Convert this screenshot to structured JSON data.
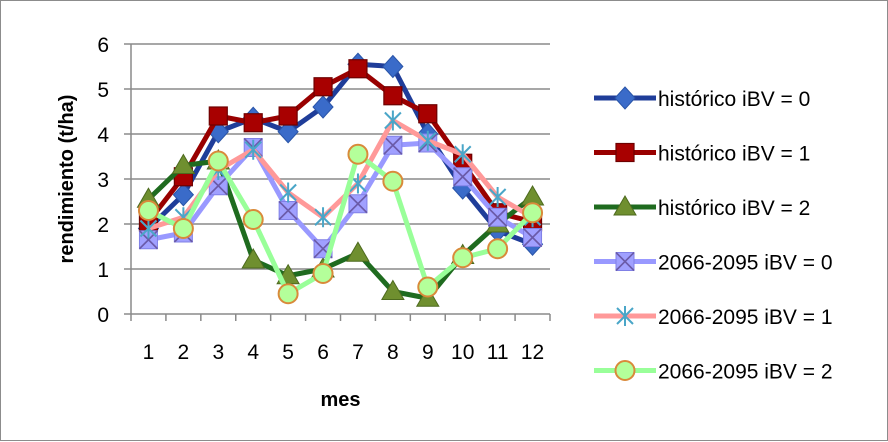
{
  "chart_data": {
    "type": "line",
    "title": "",
    "xlabel": "mes",
    "ylabel": "rendimiento (t/ha)",
    "ylim": [
      0,
      6
    ],
    "y_ticks": [
      0,
      1,
      2,
      3,
      4,
      5,
      6
    ],
    "categories": [
      "1",
      "2",
      "3",
      "4",
      "5",
      "6",
      "7",
      "8",
      "9",
      "10",
      "11",
      "12"
    ],
    "grid": "horizontal",
    "legend_position": "right",
    "series": [
      {
        "name": "histórico iBV = 0",
        "color": "#1f3d99",
        "marker": "diamond",
        "values": [
          1.9,
          2.65,
          4.05,
          4.35,
          4.05,
          4.6,
          5.55,
          5.5,
          4.0,
          2.8,
          1.85,
          1.55
        ]
      },
      {
        "name": "histórico iBV = 1",
        "color": "#990000",
        "marker": "square",
        "values": [
          2.05,
          3.05,
          4.4,
          4.25,
          4.4,
          5.05,
          5.45,
          4.85,
          4.45,
          3.35,
          2.25,
          2.05
        ]
      },
      {
        "name": "histórico iBV = 2",
        "color": "#1f6b1f",
        "marker": "triangle",
        "values": [
          2.55,
          3.3,
          3.4,
          1.2,
          0.85,
          1.0,
          1.35,
          0.5,
          0.35,
          1.3,
          2.0,
          2.6
        ]
      },
      {
        "name": "2066-2095 iBV = 0",
        "color": "#9999ff",
        "marker": "x-square",
        "values": [
          1.65,
          1.8,
          2.85,
          3.7,
          2.3,
          1.45,
          2.45,
          3.75,
          3.8,
          3.05,
          2.15,
          1.7
        ]
      },
      {
        "name": "2066-2095 iBV = 1",
        "color": "#ff9999",
        "marker": "star",
        "values": [
          1.9,
          2.15,
          3.2,
          3.65,
          2.7,
          2.15,
          2.9,
          4.3,
          3.85,
          3.55,
          2.6,
          2.15
        ]
      },
      {
        "name": "2066-2095 iBV = 2",
        "color": "#99ff99",
        "marker": "circle",
        "values": [
          2.3,
          1.9,
          3.4,
          2.1,
          0.45,
          0.9,
          3.55,
          2.95,
          0.6,
          1.25,
          1.45,
          2.25
        ]
      }
    ]
  }
}
